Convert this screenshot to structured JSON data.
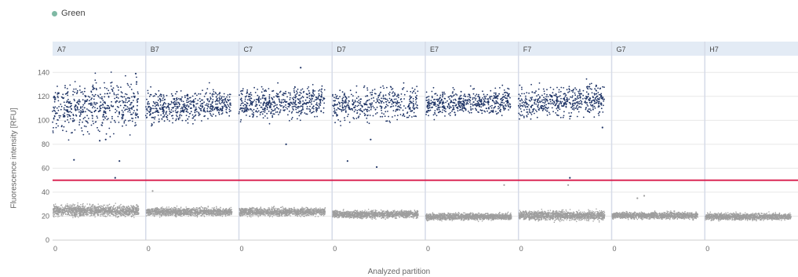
{
  "chart_data": {
    "type": "scatter",
    "legend": {
      "label": "Green",
      "color": "#7fb9a4",
      "placement": "top-left"
    },
    "xlabel": "Analyzed partition",
    "ylabel": "Fluorescence intensity [RFU]",
    "ylim": [
      0,
      150
    ],
    "yticks": [
      0,
      20,
      40,
      60,
      80,
      100,
      120,
      140
    ],
    "threshold": {
      "value": 50,
      "color": "#d81b4a"
    },
    "wells": [
      {
        "name": "A7",
        "x_tick": "0",
        "positive": {
          "mean": 109,
          "spread": 10,
          "count": 520
        },
        "negative": {
          "mean": 25,
          "spread": 2.2,
          "count": 1400
        },
        "outliers": [
          [
            0.25,
            67
          ],
          [
            0.55,
            83
          ],
          [
            0.62,
            84
          ],
          [
            0.73,
            52
          ],
          [
            0.78,
            66
          ],
          [
            0.97,
            139
          ],
          [
            0.98,
            132
          ]
        ]
      },
      {
        "name": "B7",
        "x_tick": "0",
        "positive": {
          "mean": 110,
          "spread": 6,
          "count": 520
        },
        "negative": {
          "mean": 24,
          "spread": 1.6,
          "count": 1400
        },
        "outliers": [
          [
            0.08,
            41
          ]
        ]
      },
      {
        "name": "C7",
        "x_tick": "0",
        "positive": {
          "mean": 113,
          "spread": 6,
          "count": 520
        },
        "negative": {
          "mean": 24,
          "spread": 1.6,
          "count": 1400
        },
        "outliers": [
          [
            0.72,
            144
          ],
          [
            0.55,
            80
          ]
        ]
      },
      {
        "name": "D7",
        "x_tick": "0",
        "positive": {
          "mean": 112,
          "spread": 7,
          "count": 430
        },
        "negative": {
          "mean": 22,
          "spread": 1.5,
          "count": 1400
        },
        "outliers": [
          [
            0.18,
            66
          ],
          [
            0.45,
            84
          ],
          [
            0.52,
            61
          ]
        ]
      },
      {
        "name": "E7",
        "x_tick": "0",
        "positive": {
          "mean": 113,
          "spread": 5,
          "count": 520
        },
        "negative": {
          "mean": 20,
          "spread": 1.3,
          "count": 1400
        },
        "outliers": [
          [
            0.92,
            46
          ]
        ]
      },
      {
        "name": "F7",
        "x_tick": "0",
        "positive": {
          "mean": 114,
          "spread": 6,
          "count": 500
        },
        "negative": {
          "mean": 21,
          "spread": 1.8,
          "count": 1400
        },
        "outliers": [
          [
            0.6,
            52
          ],
          [
            0.58,
            46
          ],
          [
            0.98,
            94
          ]
        ]
      },
      {
        "name": "G7",
        "x_tick": "0",
        "positive": null,
        "negative": {
          "mean": 21,
          "spread": 1.3,
          "count": 1400
        },
        "outliers": [
          [
            0.3,
            35
          ],
          [
            0.38,
            37
          ],
          [
            0.95,
            17
          ]
        ]
      },
      {
        "name": "H7",
        "x_tick": "0",
        "positive": null,
        "negative": {
          "mean": 20,
          "spread": 1.3,
          "count": 1400
        },
        "outliers": []
      }
    ],
    "colors": {
      "positive": "#1f3466",
      "negative": "#9e9e9e",
      "header": "#e3ebf5",
      "divider": "#d6dbe8",
      "grid": "#e8e8e8"
    },
    "grid": true
  }
}
